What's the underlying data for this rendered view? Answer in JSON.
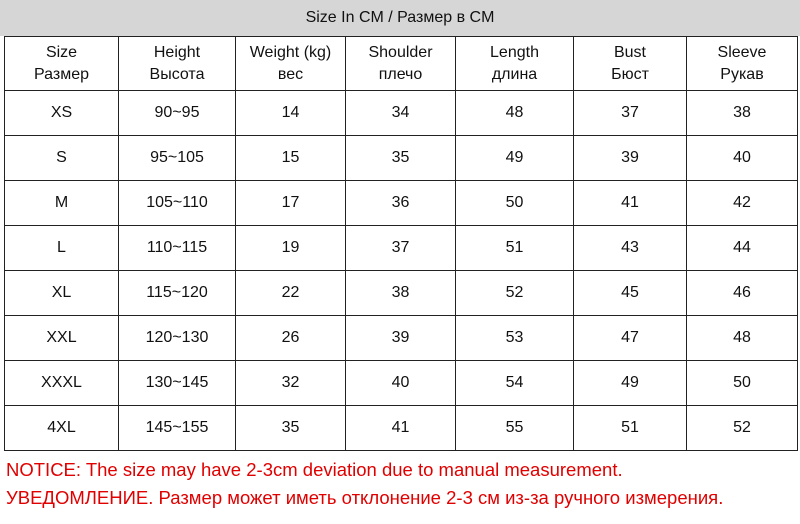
{
  "header": {
    "title": "Size In CM / Размер в CM"
  },
  "table": {
    "columns": [
      [
        "Size",
        "Размер"
      ],
      [
        "Height",
        "Высота"
      ],
      [
        "Weight (kg)",
        "вес"
      ],
      [
        "Shoulder",
        "плечо"
      ],
      [
        "Length",
        "длина"
      ],
      [
        "Bust",
        "Бюст"
      ],
      [
        "Sleeve",
        "Рукав"
      ]
    ],
    "rows": [
      [
        "XS",
        "90~95",
        14,
        34,
        48,
        37,
        38
      ],
      [
        "S",
        "95~105",
        15,
        35,
        49,
        39,
        40
      ],
      [
        "M",
        "105~110",
        17,
        36,
        50,
        41,
        42
      ],
      [
        "L",
        "110~115",
        19,
        37,
        51,
        43,
        44
      ],
      [
        "XL",
        "115~120",
        22,
        38,
        52,
        45,
        46
      ],
      [
        "XXL",
        "120~130",
        26,
        39,
        53,
        47,
        48
      ],
      [
        "XXXL",
        "130~145",
        32,
        40,
        54,
        49,
        50
      ],
      [
        "4XL",
        "145~155",
        35,
        41,
        55,
        51,
        52
      ]
    ]
  },
  "notice": [
    "NOTICE:  The size may have 2-3cm deviation due to manual measurement.",
    "УВЕДОМЛЕНИЕ. Размер может иметь отклонение 2-3 см из-за ручного измерения."
  ]
}
